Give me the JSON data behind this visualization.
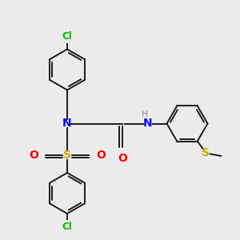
{
  "bg_color": "#ebebeb",
  "bond_color": "#1a1a1a",
  "colors": {
    "N": "#0000ff",
    "O": "#ff0000",
    "S_thio": "#ccaa00",
    "S_sulfon": "#ccaa00",
    "Cl": "#00bb00",
    "H": "#888888"
  },
  "bond_lw": 1.4,
  "ring_r": 0.85,
  "figsize": [
    3.0,
    3.0
  ],
  "dpi": 100
}
